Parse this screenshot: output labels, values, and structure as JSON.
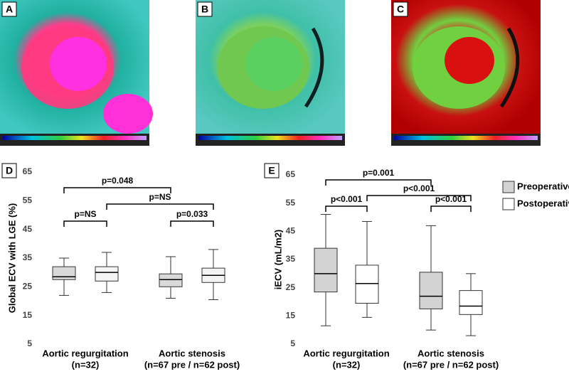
{
  "panel_labels": [
    "A",
    "B",
    "C"
  ],
  "chart_data": [
    {
      "type": "box",
      "panel_label": "D",
      "ylabel": "Global ECV with LGE (%)",
      "categories": [
        "Aortic regurgitation",
        "Aortic stenosis"
      ],
      "category_notes": [
        "(n=32)",
        "(n=67 pre / n=62 post)"
      ],
      "ylim": [
        5,
        65
      ],
      "yticks": [
        5,
        15,
        25,
        35,
        45,
        55,
        65
      ],
      "series": [
        {
          "name": "Preoperative",
          "color": "#d9d9d9",
          "values": [
            [
              22,
              27.5,
              28.5,
              32,
              35
            ],
            [
              21,
              25,
              27.5,
              29.5,
              35.5
            ]
          ]
        },
        {
          "name": "Postoperative",
          "color": "#f4f4f4",
          "values": [
            [
              23,
              27,
              30,
              32,
              37
            ],
            [
              20.5,
              26.5,
              29,
              31.5,
              38
            ]
          ]
        }
      ],
      "annotations": [
        "p=0.048",
        "p=NS",
        "p=NS",
        "p=0.033"
      ]
    },
    {
      "type": "box",
      "panel_label": "E",
      "ylabel": "iECV (mL/m2)",
      "categories": [
        "Aortic regurgitation",
        "Aortic stenosis"
      ],
      "category_notes": [
        "(n=32)",
        "(n=67 pre / n=62 post)"
      ],
      "ylim": [
        5,
        65
      ],
      "yticks": [
        5,
        15,
        25,
        35,
        45,
        55,
        65
      ],
      "legend": true,
      "series": [
        {
          "name": "Preoperative",
          "color": "#d3d3d3",
          "values": [
            [
              11.5,
              23.5,
              30,
              39,
              51
            ],
            [
              10,
              17.5,
              22,
              30.5,
              47
            ]
          ]
        },
        {
          "name": "Postoperative",
          "color": "#ffffff",
          "values": [
            [
              14.5,
              19.5,
              26.5,
              33,
              48.5
            ],
            [
              8,
              15.5,
              18.5,
              24,
              30
            ]
          ]
        }
      ],
      "annotations": [
        "p=0.001",
        "p<0.001",
        "p<0.001",
        "p<0.001"
      ]
    }
  ]
}
